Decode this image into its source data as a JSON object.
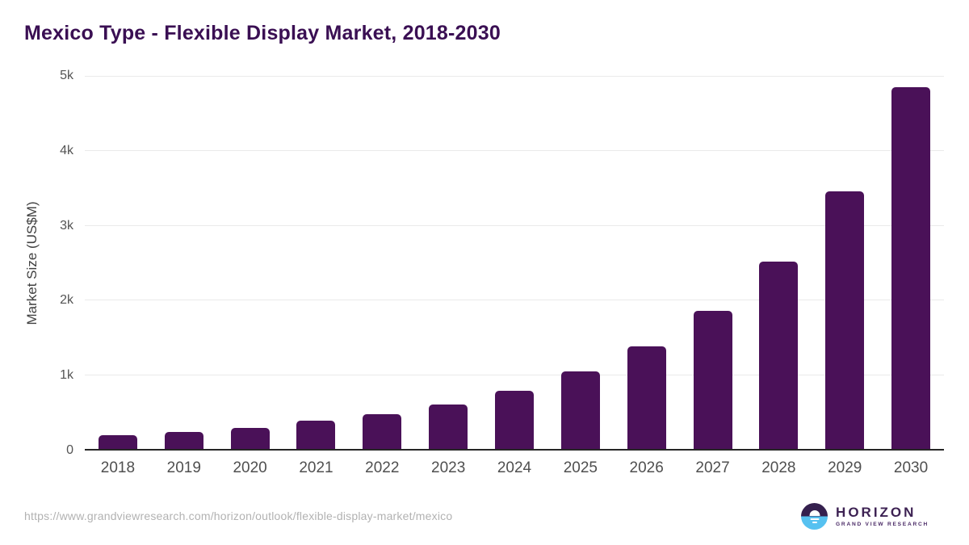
{
  "chart": {
    "title": "Mexico Type - Flexible Display Market, 2018-2030"
  },
  "chart_data": {
    "type": "bar",
    "title": "Mexico Type - Flexible Display Market, 2018-2030",
    "xlabel": "",
    "ylabel": "Market Size (US$M)",
    "ylim": [
      0,
      5000
    ],
    "grid": true,
    "legend": "none",
    "bar_color": "#4a1158",
    "categories": [
      "2018",
      "2019",
      "2020",
      "2021",
      "2022",
      "2023",
      "2024",
      "2025",
      "2026",
      "2027",
      "2028",
      "2029",
      "2030"
    ],
    "values": [
      180,
      232,
      280,
      377,
      459,
      593,
      781,
      1034,
      1372,
      1838,
      2502,
      3438,
      4823
    ],
    "yticks": [
      {
        "label": "0",
        "value": 0
      },
      {
        "label": "1k",
        "value": 1000
      },
      {
        "label": "2k",
        "value": 2000
      },
      {
        "label": "3k",
        "value": 3000
      },
      {
        "label": "4k",
        "value": 4000
      },
      {
        "label": "5k",
        "value": 5000
      }
    ]
  },
  "footer": {
    "source_url": "https://www.grandviewresearch.com/horizon/outlook/flexible-display-market/mexico",
    "logo_title": "HORIZON",
    "logo_subtitle": "GRAND VIEW RESEARCH"
  },
  "colors": {
    "bar": "#4a1158",
    "title_text": "#3a0f53",
    "axis_line": "#262626",
    "gridline": "#eaeaea",
    "tick_text": "#545454",
    "url_text": "#b2b2b2",
    "logo_purple": "#35204e",
    "logo_blue": "#56c1f0"
  }
}
